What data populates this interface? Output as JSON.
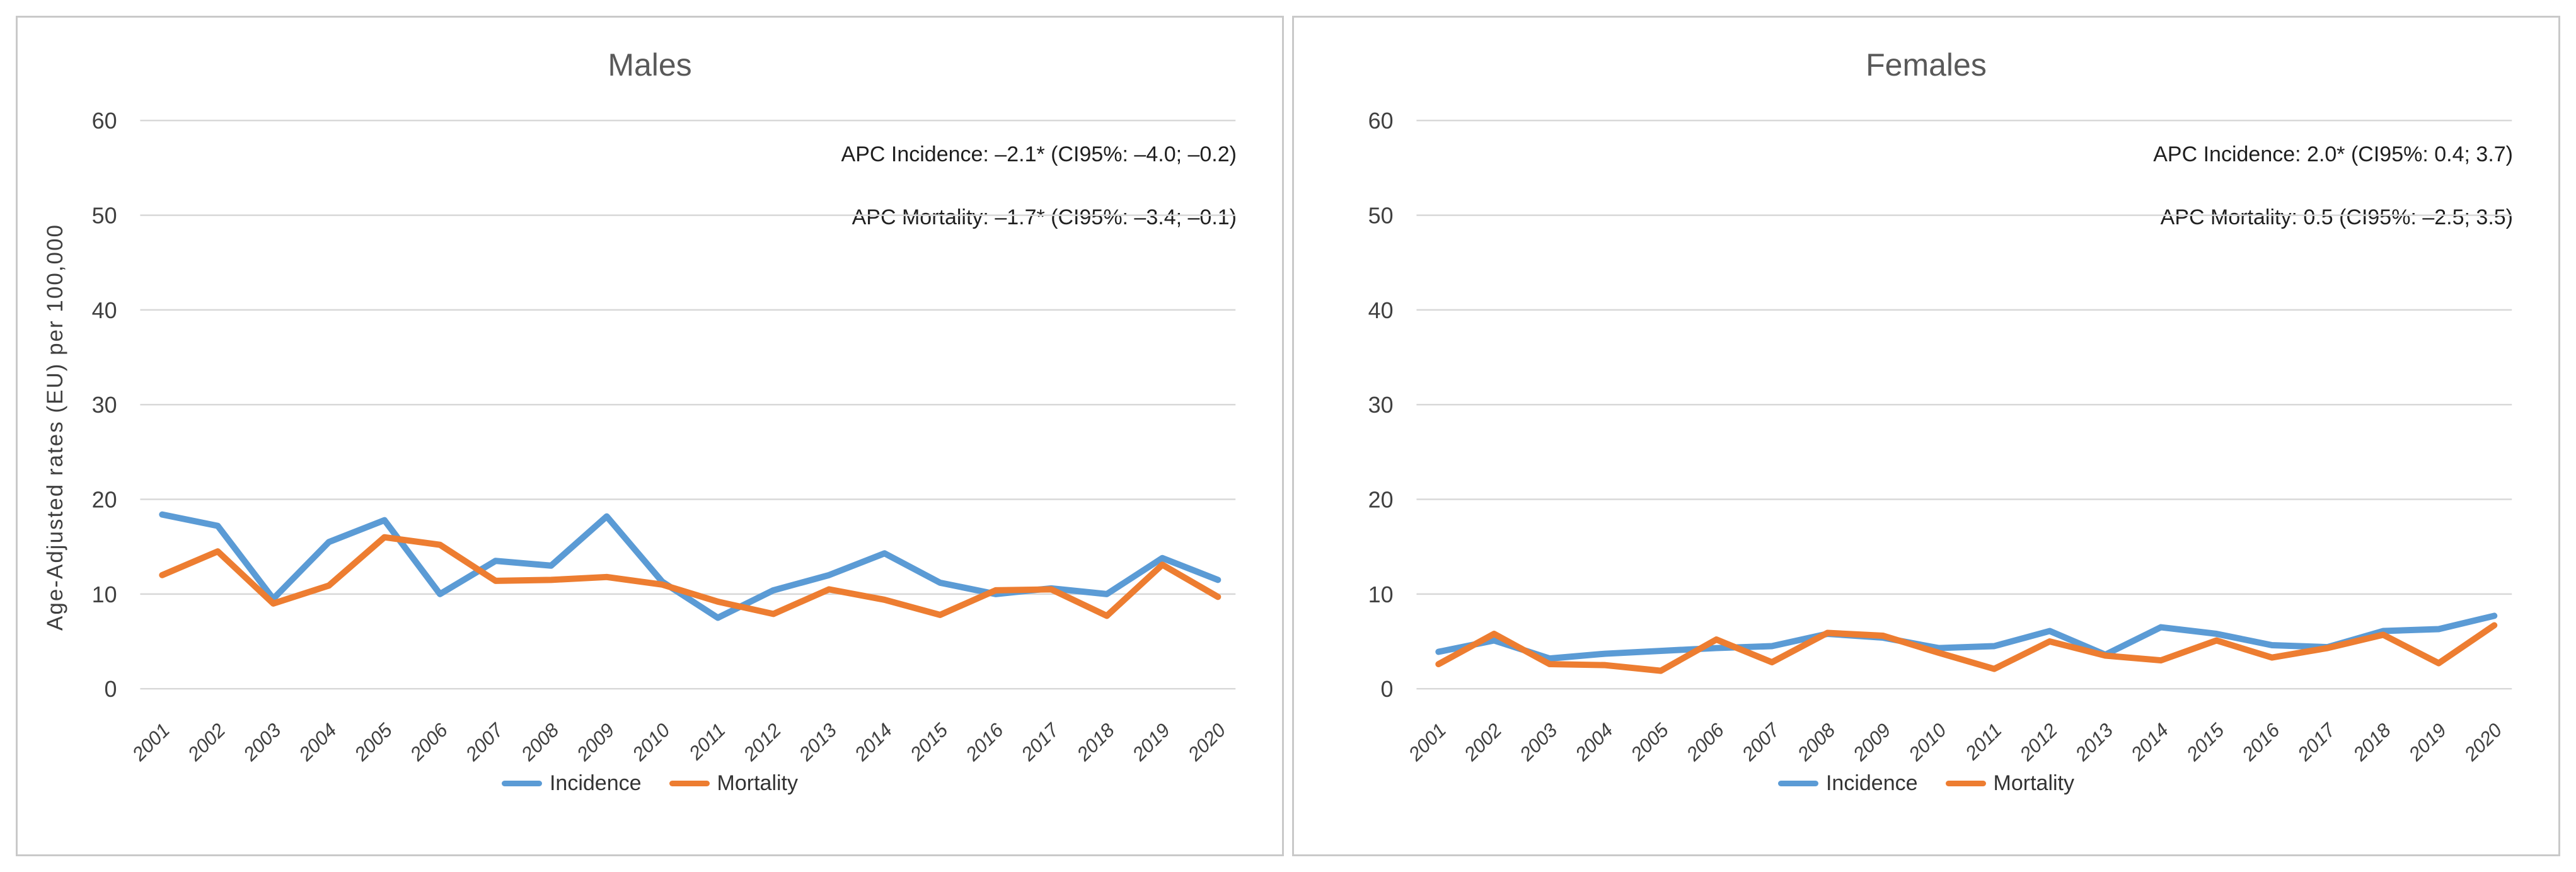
{
  "styles": {
    "grid_color": "#D8D8D8",
    "title_color": "#595959",
    "axis_text_color": "#404040",
    "annotation_color": "#1F1F1F",
    "panel_border_color": "#C9C9C9",
    "incidence_color": "#5B9BD5",
    "mortality_color": "#ED7D31"
  },
  "chart_data": [
    {
      "id": "males",
      "type": "line",
      "title": "Males",
      "x": [
        2001,
        2002,
        2003,
        2004,
        2005,
        2006,
        2007,
        2008,
        2009,
        2010,
        2011,
        2012,
        2013,
        2014,
        2015,
        2016,
        2017,
        2018,
        2019,
        2020
      ],
      "series": [
        {
          "name": "Incidence",
          "color": "#5B9BD5",
          "values": [
            18.4,
            17.2,
            9.5,
            15.5,
            17.8,
            10.0,
            13.5,
            13.0,
            18.2,
            11.3,
            7.5,
            10.4,
            12.0,
            14.3,
            11.2,
            10.0,
            10.6,
            10.0,
            13.8,
            11.5
          ]
        },
        {
          "name": "Mortality",
          "color": "#ED7D31",
          "values": [
            12.0,
            14.5,
            9.0,
            10.9,
            16.0,
            15.2,
            11.4,
            11.5,
            11.8,
            11.0,
            9.2,
            7.9,
            10.5,
            9.4,
            7.8,
            10.4,
            10.5,
            7.7,
            13.1,
            9.7
          ]
        }
      ],
      "xlabel": "",
      "ylabel": "Age-Adjusted rates (EU) per 100,000",
      "ylim": [
        0,
        60
      ],
      "yticks": [
        0,
        10,
        20,
        30,
        40,
        50,
        60
      ],
      "grid": true,
      "legend_position": "bottom",
      "annotations": [
        "APC Incidence: –2.1* (CI95%: –4.0; –0.2)",
        "APC Mortality: –1.7* (CI95%: –3.4; –0.1)"
      ]
    },
    {
      "id": "females",
      "type": "line",
      "title": "Females",
      "x": [
        2001,
        2002,
        2003,
        2004,
        2005,
        2006,
        2007,
        2008,
        2009,
        2010,
        2011,
        2012,
        2013,
        2014,
        2015,
        2016,
        2017,
        2018,
        2019,
        2020
      ],
      "series": [
        {
          "name": "Incidence",
          "color": "#5B9BD5",
          "values": [
            3.9,
            5.1,
            3.2,
            3.7,
            4.0,
            4.3,
            4.5,
            5.8,
            5.4,
            4.3,
            4.5,
            6.1,
            3.6,
            6.5,
            5.8,
            4.6,
            4.4,
            6.1,
            6.3,
            7.7
          ]
        },
        {
          "name": "Mortality",
          "color": "#ED7D31",
          "values": [
            2.6,
            5.8,
            2.6,
            2.5,
            1.9,
            5.2,
            2.8,
            5.9,
            5.6,
            3.8,
            2.1,
            5.0,
            3.5,
            3.0,
            5.1,
            3.3,
            4.3,
            5.7,
            2.7,
            6.7
          ]
        }
      ],
      "xlabel": "",
      "ylabel": "",
      "ylim": [
        0,
        60
      ],
      "yticks": [
        0,
        10,
        20,
        30,
        40,
        50,
        60
      ],
      "grid": true,
      "legend_position": "bottom",
      "annotations": [
        "APC Incidence: 2.0* (CI95%: 0.4; 3.7)",
        "APC Mortality: 0.5 (CI95%: –2.5; 3.5)"
      ]
    }
  ]
}
